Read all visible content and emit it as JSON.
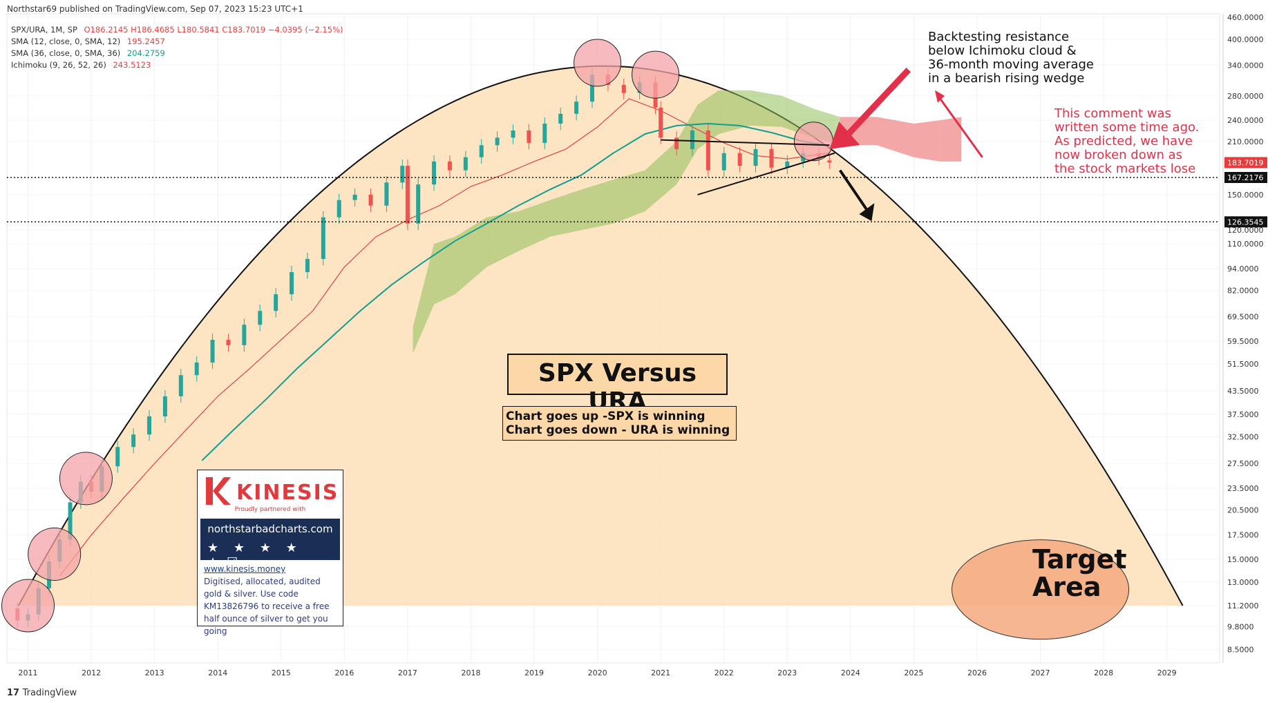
{
  "header": {
    "published": "Northstar69 published on TradingView.com, Sep 07, 2023 15:23 UTC+1"
  },
  "legend": {
    "symbol_line": {
      "label": "SPX/URA, 1M, SP",
      "ohlc": "O186.2145 H186.4685 L180.5841 C183.7019 −4.0395 (−2.15%)"
    },
    "sma12": {
      "label": "SMA (12, close, 0, SMA, 12)",
      "value": "195.2457"
    },
    "sma36": {
      "label": "SMA (36, close, 0, SMA, 36)",
      "value": "204.2759"
    },
    "ichimoku": {
      "label": "Ichimoku (9, 26, 52, 26)",
      "value": "243.5123"
    }
  },
  "colors": {
    "up": "#26a69a",
    "down": "#ef5350",
    "sma12": "#e34040",
    "sma36": "#0f9e8f",
    "cloud_bull": "#8fbf5a",
    "cloud_bear": "#f08a8a",
    "arc_fill": "#fde2bd",
    "highlight_circle": "#f4a3a8",
    "annotation_red": "#e2304a",
    "label_red_bg": "#e53b3b"
  },
  "chart_data": {
    "type": "candlestick",
    "symbol": "SPX/URA",
    "interval": "1M",
    "scale": "log",
    "ylim": [
      7.8,
      470
    ],
    "x_range": [
      "2010-09",
      "2029-11"
    ],
    "x_tick_labels": [
      "2011",
      "2012",
      "2013",
      "2014",
      "2015",
      "2016",
      "2017",
      "2018",
      "2019",
      "2020",
      "2021",
      "2022",
      "2023",
      "2024",
      "2025",
      "2026",
      "2027",
      "2028",
      "2029"
    ],
    "y_tick_labels": [
      "460.0000",
      "400.0000",
      "340.0000",
      "280.0000",
      "240.0000",
      "210.0000",
      "150.0000",
      "120.0000",
      "110.0000",
      "94.0000",
      "82.0000",
      "69.5000",
      "59.5000",
      "51.5000",
      "43.5000",
      "37.5000",
      "32.5000",
      "27.5000",
      "23.5000",
      "20.5000",
      "17.5000",
      "15.0000",
      "13.0000",
      "11.2000",
      "9.8000",
      "8.5000"
    ],
    "price_labels": [
      {
        "value": "183.7019",
        "kind": "last"
      },
      {
        "value": "167.2176",
        "kind": "horizontal-line"
      },
      {
        "value": "126.3545",
        "kind": "horizontal-line"
      }
    ],
    "horizontal_lines": [
      167.2176,
      126.3545
    ],
    "series": [
      {
        "name": "SPX/URA",
        "type": "candle",
        "points": [
          [
            "2010-11",
            11,
            10.2
          ],
          [
            "2011-01",
            10.2,
            10.6
          ],
          [
            "2011-03",
            10.6,
            12.5
          ],
          [
            "2011-05",
            12.5,
            14.8
          ],
          [
            "2011-07",
            14.8,
            17.0
          ],
          [
            "2011-09",
            17.0,
            21.5
          ],
          [
            "2011-11",
            21.5,
            24.5
          ],
          [
            "2012-01",
            24.5,
            23.0
          ],
          [
            "2012-03",
            23.0,
            27.0
          ],
          [
            "2012-06",
            27.0,
            30.5
          ],
          [
            "2012-09",
            30.5,
            33.0
          ],
          [
            "2012-12",
            33.0,
            37.0
          ],
          [
            "2013-03",
            37.0,
            42.0
          ],
          [
            "2013-06",
            42.0,
            48.0
          ],
          [
            "2013-09",
            48.0,
            52.0
          ],
          [
            "2013-12",
            52.0,
            60.0
          ],
          [
            "2014-03",
            60.0,
            58.0
          ],
          [
            "2014-06",
            58.0,
            66.0
          ],
          [
            "2014-09",
            66.0,
            72.0
          ],
          [
            "2014-12",
            72.0,
            80.0
          ],
          [
            "2015-03",
            80.0,
            92.0
          ],
          [
            "2015-06",
            92.0,
            100.0
          ],
          [
            "2015-09",
            100.0,
            130.0
          ],
          [
            "2015-12",
            130.0,
            145.0
          ],
          [
            "2016-03",
            145.0,
            150.0
          ],
          [
            "2016-06",
            150.0,
            140.0
          ],
          [
            "2016-09",
            140.0,
            162.0
          ],
          [
            "2016-12",
            162.0,
            180.0
          ],
          [
            "2017-01",
            180.0,
            125.0
          ],
          [
            "2017-03",
            125.0,
            160.0
          ],
          [
            "2017-06",
            160.0,
            185.0
          ],
          [
            "2017-09",
            185.0,
            175.0
          ],
          [
            "2017-12",
            175.0,
            190.0
          ],
          [
            "2018-03",
            190.0,
            205.0
          ],
          [
            "2018-06",
            205.0,
            215.0
          ],
          [
            "2018-09",
            215.0,
            225.0
          ],
          [
            "2018-12",
            225.0,
            208.0
          ],
          [
            "2019-03",
            208.0,
            235.0
          ],
          [
            "2019-06",
            235.0,
            250.0
          ],
          [
            "2019-09",
            250.0,
            270.0
          ],
          [
            "2019-12",
            270.0,
            320.0
          ],
          [
            "2020-03",
            320.0,
            300.0
          ],
          [
            "2020-06",
            300.0,
            285.0
          ],
          [
            "2020-09",
            285.0,
            305.0
          ],
          [
            "2020-12",
            305.0,
            260.0
          ],
          [
            "2021-01",
            260.0,
            215.0
          ],
          [
            "2021-04",
            215.0,
            200.0
          ],
          [
            "2021-07",
            200.0,
            225.0
          ],
          [
            "2021-10",
            225.0,
            175.0
          ],
          [
            "2022-01",
            175.0,
            195.0
          ],
          [
            "2022-04",
            195.0,
            180.0
          ],
          [
            "2022-07",
            180.0,
            200.0
          ],
          [
            "2022-10",
            200.0,
            178.0
          ],
          [
            "2023-01",
            178.0,
            185.0
          ],
          [
            "2023-04",
            185.0,
            195.0
          ],
          [
            "2023-07",
            195.0,
            188.0
          ],
          [
            "2023-09",
            186.2145,
            183.7019
          ]
        ]
      },
      {
        "name": "SMA 12",
        "type": "line",
        "points": [
          [
            "2011-07",
            13.5
          ],
          [
            "2012-01",
            17.5
          ],
          [
            "2012-07",
            22.0
          ],
          [
            "2013-01",
            27.5
          ],
          [
            "2013-07",
            34.0
          ],
          [
            "2014-01",
            42.0
          ],
          [
            "2014-07",
            50.0
          ],
          [
            "2015-01",
            60.0
          ],
          [
            "2015-07",
            72.0
          ],
          [
            "2016-01",
            95.0
          ],
          [
            "2016-07",
            115.0
          ],
          [
            "2017-01",
            128.0
          ],
          [
            "2017-07",
            140.0
          ],
          [
            "2018-01",
            158.0
          ],
          [
            "2018-07",
            170.0
          ],
          [
            "2019-01",
            185.0
          ],
          [
            "2019-07",
            200.0
          ],
          [
            "2020-01",
            230.0
          ],
          [
            "2020-07",
            275.0
          ],
          [
            "2021-01",
            255.0
          ],
          [
            "2021-07",
            230.0
          ],
          [
            "2022-01",
            208.0
          ],
          [
            "2022-07",
            192.0
          ],
          [
            "2023-01",
            188.0
          ],
          [
            "2023-09",
            195.2457
          ]
        ]
      },
      {
        "name": "SMA 36",
        "type": "line",
        "points": [
          [
            "2013-10",
            28.0
          ],
          [
            "2014-04",
            34.0
          ],
          [
            "2014-10",
            41.0
          ],
          [
            "2015-04",
            50.0
          ],
          [
            "2015-10",
            60.0
          ],
          [
            "2016-04",
            72.0
          ],
          [
            "2016-10",
            85.0
          ],
          [
            "2017-04",
            98.0
          ],
          [
            "2017-10",
            112.0
          ],
          [
            "2018-04",
            125.0
          ],
          [
            "2018-10",
            140.0
          ],
          [
            "2019-04",
            155.0
          ],
          [
            "2019-10",
            170.0
          ],
          [
            "2020-04",
            195.0
          ],
          [
            "2020-10",
            220.0
          ],
          [
            "2021-04",
            232.0
          ],
          [
            "2021-10",
            235.0
          ],
          [
            "2022-04",
            232.0
          ],
          [
            "2022-10",
            222.0
          ],
          [
            "2023-04",
            210.0
          ],
          [
            "2023-09",
            204.2759
          ]
        ]
      },
      {
        "name": "Ichimoku",
        "type": "cloud",
        "points": [
          [
            "2017-02",
            55,
            65
          ],
          [
            "2017-06",
            75,
            110
          ],
          [
            "2017-10",
            80,
            115
          ],
          [
            "2018-04",
            95,
            130
          ],
          [
            "2018-10",
            105,
            135
          ],
          [
            "2019-04",
            115,
            145
          ],
          [
            "2019-10",
            120,
            155
          ],
          [
            "2020-04",
            125,
            165
          ],
          [
            "2020-10",
            135,
            175
          ],
          [
            "2021-04",
            160,
            210
          ],
          [
            "2021-08",
            200,
            265
          ],
          [
            "2021-12",
            220,
            290
          ],
          [
            "2022-06",
            232,
            290
          ],
          [
            "2022-12",
            230,
            280
          ],
          [
            "2023-06",
            215,
            258
          ],
          [
            "2023-11",
            205,
            245
          ],
          [
            "2024-06",
            205,
            245
          ],
          [
            "2025-01",
            190,
            235
          ],
          [
            "2025-06",
            185,
            240
          ],
          [
            "2025-10",
            185,
            245
          ]
        ]
      }
    ]
  },
  "annotations": {
    "title": "SPX Versus URA",
    "subtitle_lines": [
      "Chart goes up -SPX is winning",
      "Chart goes down - URA is winning"
    ],
    "resistance_note": "Backtesting resistance\nbelow Ichimoku cloud &\n36-month moving average\nin a bearish rising wedge",
    "comment_note": "This comment was\nwritten some time ago.\nAs predicted, we have\nnow broken down as\nthe stock markets lose",
    "target": "Target\nArea"
  },
  "kinesis": {
    "brand": "KINESIS",
    "tagline": "Proudly partnered with",
    "site": "northstarbadcharts.com",
    "stars": "★ ★ ★ ★ ★",
    "link": "www.kinesis.money",
    "body": "Digitised, allocated, audited gold & silver. Use code KM13826796 to receive a free half ounce of silver to get you going"
  },
  "footer": {
    "brand": "TradingView"
  }
}
